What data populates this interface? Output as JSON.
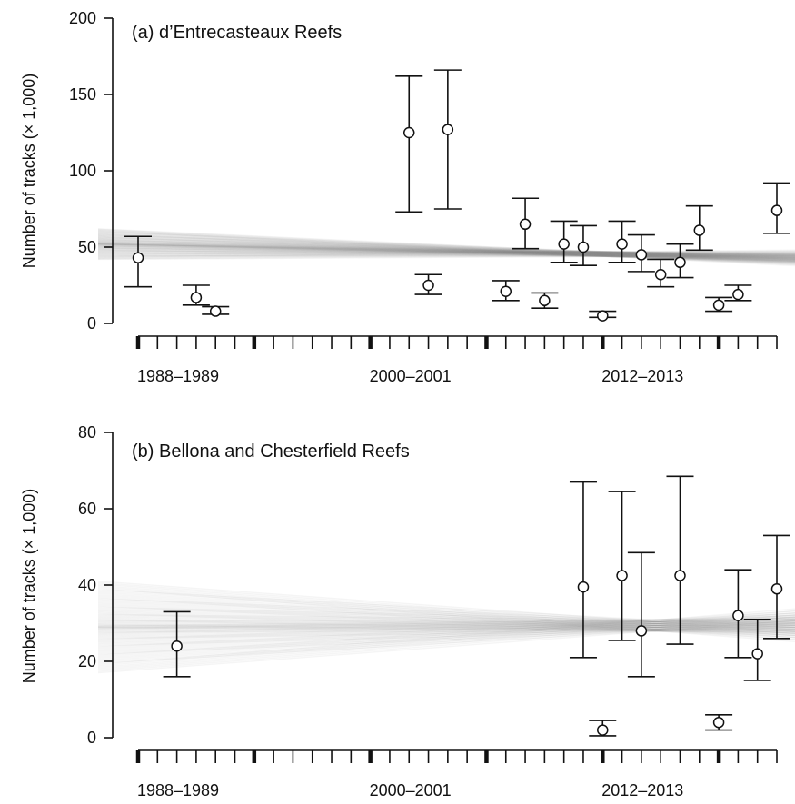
{
  "chart_data": [
    {
      "type": "scatter",
      "title": "(a) d’Entrecasteaux Reefs",
      "ylabel": "Number of tracks (× 1,000)",
      "ylim": [
        0,
        200
      ],
      "yticks": [
        0,
        50,
        100,
        150,
        200
      ],
      "xlim": [
        1988,
        2021
      ],
      "xticks": [
        1988,
        1989,
        1990,
        1991,
        1992,
        1993,
        1994,
        1995,
        1996,
        1997,
        1998,
        1999,
        2000,
        2001,
        2002,
        2003,
        2004,
        2005,
        2006,
        2007,
        2008,
        2009,
        2010,
        2011,
        2012,
        2013,
        2014,
        2015,
        2016,
        2017,
        2018,
        2019,
        2020,
        2021
      ],
      "major_xticks": [
        1988,
        1994,
        2000,
        2006,
        2012,
        2018
      ],
      "x_tick_labels": [
        {
          "x": 1988,
          "label": "1988–1989"
        },
        {
          "x": 2000,
          "label": "2000–2001"
        },
        {
          "x": 2012,
          "label": "2012–2013"
        }
      ],
      "points": [
        {
          "x": 1988,
          "y": 43,
          "lo": 24,
          "hi": 57
        },
        {
          "x": 1991,
          "y": 17,
          "lo": 12,
          "hi": 25
        },
        {
          "x": 1992,
          "y": 8,
          "lo": 6,
          "hi": 11
        },
        {
          "x": 2002,
          "y": 125,
          "lo": 73,
          "hi": 162
        },
        {
          "x": 2003,
          "y": 25,
          "lo": 19,
          "hi": 32
        },
        {
          "x": 2004,
          "y": 127,
          "lo": 75,
          "hi": 166
        },
        {
          "x": 2007,
          "y": 21,
          "lo": 15,
          "hi": 28
        },
        {
          "x": 2008,
          "y": 65,
          "lo": 49,
          "hi": 82
        },
        {
          "x": 2009,
          "y": 15,
          "lo": 10,
          "hi": 20
        },
        {
          "x": 2010,
          "y": 52,
          "lo": 40,
          "hi": 67
        },
        {
          "x": 2011,
          "y": 50,
          "lo": 38,
          "hi": 64
        },
        {
          "x": 2012,
          "y": 5,
          "lo": 4,
          "hi": 8
        },
        {
          "x": 2013,
          "y": 52,
          "lo": 40,
          "hi": 67
        },
        {
          "x": 2014,
          "y": 45,
          "lo": 34,
          "hi": 58
        },
        {
          "x": 2015,
          "y": 32,
          "lo": 24,
          "hi": 42
        },
        {
          "x": 2016,
          "y": 40,
          "lo": 30,
          "hi": 52
        },
        {
          "x": 2017,
          "y": 61,
          "lo": 48,
          "hi": 77
        },
        {
          "x": 2018,
          "y": 12,
          "lo": 8,
          "hi": 17
        },
        {
          "x": 2019,
          "y": 19,
          "lo": 15,
          "hi": 25
        },
        {
          "x": 2021,
          "y": 74,
          "lo": 59,
          "hi": 92
        }
      ],
      "trend_band": {
        "left_center": 52,
        "left_spread": 10,
        "right_center": 43,
        "right_spread": 6
      }
    },
    {
      "type": "scatter",
      "title": "(b) Bellona and Chesterfield Reefs",
      "ylabel": "Number of tracks (× 1,000)",
      "ylim": [
        0,
        80
      ],
      "yticks": [
        0,
        20,
        40,
        60,
        80
      ],
      "xlim": [
        1988,
        2021
      ],
      "xticks": [
        1988,
        1989,
        1990,
        1991,
        1992,
        1993,
        1994,
        1995,
        1996,
        1997,
        1998,
        1999,
        2000,
        2001,
        2002,
        2003,
        2004,
        2005,
        2006,
        2007,
        2008,
        2009,
        2010,
        2011,
        2012,
        2013,
        2014,
        2015,
        2016,
        2017,
        2018,
        2019,
        2020,
        2021
      ],
      "major_xticks": [
        1988,
        1994,
        2000,
        2006,
        2012,
        2018
      ],
      "x_tick_labels": [
        {
          "x": 1988,
          "label": "1988–1989"
        },
        {
          "x": 2000,
          "label": "2000–2001"
        },
        {
          "x": 2012,
          "label": "2012–2013"
        }
      ],
      "points": [
        {
          "x": 1990,
          "y": 24,
          "lo": 16,
          "hi": 33
        },
        {
          "x": 2011,
          "y": 39.5,
          "lo": 21,
          "hi": 67
        },
        {
          "x": 2012,
          "y": 2,
          "lo": 0.5,
          "hi": 4.5
        },
        {
          "x": 2013,
          "y": 42.5,
          "lo": 25.5,
          "hi": 64.5
        },
        {
          "x": 2014,
          "y": 28,
          "lo": 16,
          "hi": 48.5
        },
        {
          "x": 2016,
          "y": 42.5,
          "lo": 24.5,
          "hi": 68.5
        },
        {
          "x": 2018,
          "y": 4,
          "lo": 2,
          "hi": 6
        },
        {
          "x": 2019,
          "y": 32,
          "lo": 21,
          "hi": 44
        },
        {
          "x": 2020,
          "y": 22,
          "lo": 15,
          "hi": 31
        },
        {
          "x": 2021,
          "y": 39,
          "lo": 26,
          "hi": 53
        }
      ],
      "trend_band": {
        "left_center": 29,
        "left_spread": 12,
        "right_center": 29.5,
        "right_spread": 5
      }
    }
  ]
}
